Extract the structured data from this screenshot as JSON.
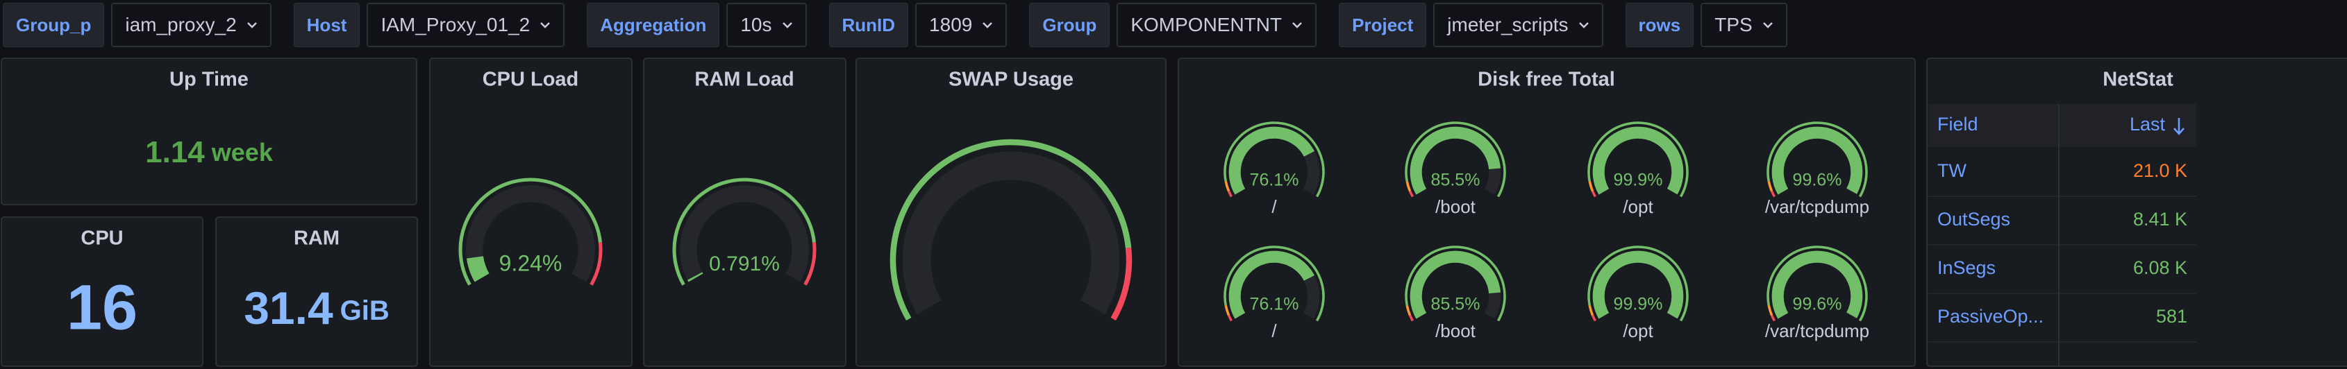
{
  "variables": [
    {
      "label": "Group_p",
      "value": "iam_proxy_2"
    },
    {
      "label": "Host",
      "value": "IAM_Proxy_01_2"
    },
    {
      "label": "Aggregation",
      "value": "10s"
    },
    {
      "label": "RunID",
      "value": "1809"
    },
    {
      "label": "Group",
      "value": "KOMPONENTNT"
    },
    {
      "label": "Project",
      "value": "jmeter_scripts"
    },
    {
      "label": "rows",
      "value": "TPS"
    }
  ],
  "uptime": {
    "title": "Up Time",
    "value": 1.14,
    "unit": "week"
  },
  "cpu": {
    "title": "CPU",
    "value": 16
  },
  "ram": {
    "title": "RAM",
    "value": 31.4,
    "unit": "GiB"
  },
  "cpu_load": {
    "title": "CPU Load",
    "value": 9.24,
    "value_label": "9.24%",
    "range": [
      0,
      100
    ],
    "thresholds": [
      {
        "value": 0,
        "color": "#73bf69"
      },
      {
        "value": 85,
        "color": "#f2495c"
      }
    ]
  },
  "ram_load": {
    "title": "RAM Load",
    "value": 0.791,
    "value_label": "0.791%",
    "range": [
      0,
      100
    ],
    "thresholds": [
      {
        "value": 0,
        "color": "#73bf69"
      },
      {
        "value": 85,
        "color": "#f2495c"
      }
    ]
  },
  "swap": {
    "title": "SWAP Usage",
    "range": [
      0,
      100
    ],
    "thresholds": [
      {
        "value": 0,
        "color": "#73bf69"
      },
      {
        "value": 85,
        "color": "#f2495c"
      }
    ]
  },
  "disk": {
    "title": "Disk free Total",
    "range": [
      0,
      100
    ],
    "thresholds": [
      {
        "value": 0,
        "color": "#f2495c"
      },
      {
        "value": 3,
        "color": "#ff9830"
      },
      {
        "value": 8,
        "color": "#73bf69"
      }
    ],
    "gauges": [
      {
        "value": 76.1,
        "value_label": "76.1%",
        "label": "/"
      },
      {
        "value": 85.5,
        "value_label": "85.5%",
        "label": "/boot"
      },
      {
        "value": 99.9,
        "value_label": "99.9%",
        "label": "/opt"
      },
      {
        "value": 99.6,
        "value_label": "99.6%",
        "label": "/var/tcpdump"
      },
      {
        "value": 76.1,
        "value_label": "76.1%",
        "label": "/"
      },
      {
        "value": 85.5,
        "value_label": "85.5%",
        "label": "/boot"
      },
      {
        "value": 99.9,
        "value_label": "99.9%",
        "label": "/opt"
      },
      {
        "value": 99.6,
        "value_label": "99.6%",
        "label": "/var/tcpdump"
      }
    ]
  },
  "netstat": {
    "title": "NetStat",
    "columns": [
      "Field",
      "Last"
    ],
    "rows": [
      {
        "field": "TW",
        "last": "21.0 K",
        "color": "#ff7f2a"
      },
      {
        "field": "OutSegs",
        "last": "8.41 K",
        "color": "#73bf69"
      },
      {
        "field": "InSegs",
        "last": "6.08 K",
        "color": "#73bf69"
      },
      {
        "field": "PassiveOp...",
        "last": "581",
        "color": "#73bf69"
      }
    ]
  }
}
